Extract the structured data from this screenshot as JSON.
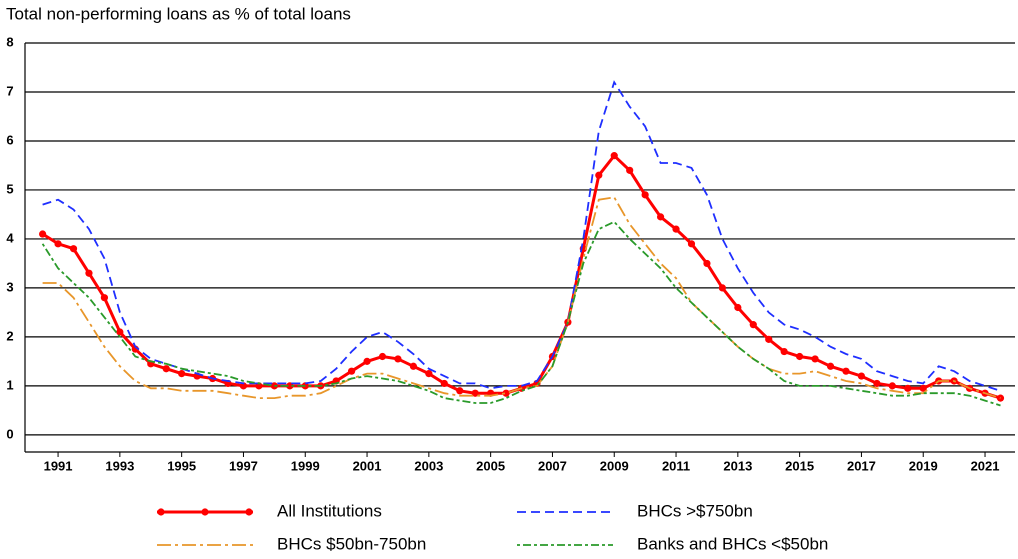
{
  "chart_data": {
    "type": "line",
    "title": "Total non-performing loans as % of total loans",
    "x": [
      1991,
      1991.5,
      1992,
      1992.5,
      1993,
      1993.5,
      1994,
      1994.5,
      1995,
      1995.5,
      1996,
      1996.5,
      1997,
      1997.5,
      1998,
      1998.5,
      1999,
      1999.5,
      2000,
      2000.5,
      2001,
      2001.5,
      2002,
      2002.5,
      2003,
      2003.5,
      2004,
      2004.5,
      2005,
      2005.5,
      2006,
      2006.5,
      2007,
      2007.5,
      2008,
      2008.5,
      2009,
      2009.5,
      2010,
      2010.5,
      2011,
      2011.5,
      2012,
      2012.5,
      2013,
      2013.5,
      2014,
      2014.5,
      2015,
      2015.5,
      2016,
      2016.5,
      2017,
      2017.5,
      2018,
      2018.5,
      2019,
      2019.5,
      2020,
      2020.5,
      2021,
      2021.5,
      2022
    ],
    "series": [
      {
        "name": "All Institutions",
        "color": "#ff0000",
        "style": "solid",
        "markers": true,
        "values": [
          4.1,
          3.9,
          3.8,
          3.3,
          2.8,
          2.1,
          1.75,
          1.45,
          1.35,
          1.25,
          1.2,
          1.15,
          1.05,
          1.0,
          1.0,
          1.0,
          1.0,
          1.0,
          1.0,
          1.1,
          1.3,
          1.5,
          1.6,
          1.55,
          1.4,
          1.25,
          1.05,
          0.9,
          0.85,
          0.85,
          0.85,
          0.95,
          1.05,
          1.6,
          2.3,
          3.8,
          5.3,
          5.7,
          5.4,
          4.9,
          4.45,
          4.2,
          3.9,
          3.5,
          3.0,
          2.6,
          2.25,
          1.95,
          1.7,
          1.6,
          1.55,
          1.4,
          1.3,
          1.2,
          1.05,
          1.0,
          0.95,
          0.95,
          1.1,
          1.1,
          0.95,
          0.85,
          0.75
        ]
      },
      {
        "name": "BHCs >$750bn",
        "color": "#1f2fff",
        "style": "dashed",
        "markers": false,
        "values": [
          4.7,
          4.8,
          4.6,
          4.2,
          3.6,
          2.5,
          1.8,
          1.55,
          1.45,
          1.35,
          1.25,
          1.15,
          1.1,
          1.05,
          1.05,
          1.05,
          1.05,
          1.05,
          1.1,
          1.35,
          1.7,
          2.0,
          2.1,
          1.9,
          1.65,
          1.35,
          1.2,
          1.05,
          1.05,
          0.95,
          1.0,
          1.0,
          1.1,
          1.6,
          2.3,
          4.0,
          6.2,
          7.2,
          6.7,
          6.3,
          5.55,
          5.55,
          5.45,
          4.9,
          4.0,
          3.4,
          2.9,
          2.5,
          2.25,
          2.15,
          2.0,
          1.8,
          1.65,
          1.55,
          1.3,
          1.2,
          1.1,
          1.05,
          1.4,
          1.3,
          1.1,
          1.0,
          0.9
        ]
      },
      {
        "name": "BHCs $50bn-750bn",
        "color": "#e8962a",
        "style": "dash-dot",
        "markers": false,
        "values": [
          3.1,
          3.1,
          2.8,
          2.3,
          1.8,
          1.4,
          1.1,
          0.95,
          0.95,
          0.9,
          0.9,
          0.9,
          0.85,
          0.8,
          0.75,
          0.75,
          0.8,
          0.8,
          0.85,
          1.0,
          1.15,
          1.25,
          1.25,
          1.15,
          1.05,
          0.95,
          0.85,
          0.8,
          0.8,
          0.8,
          0.85,
          0.95,
          1.0,
          1.4,
          2.3,
          3.6,
          4.8,
          4.85,
          4.3,
          3.9,
          3.5,
          3.2,
          2.7,
          2.4,
          2.1,
          1.8,
          1.55,
          1.35,
          1.25,
          1.25,
          1.3,
          1.2,
          1.1,
          1.05,
          0.95,
          0.9,
          0.85,
          0.85,
          1.1,
          1.1,
          0.95,
          0.85,
          0.75
        ]
      },
      {
        "name": "Banks and BHCs <$50bn",
        "color": "#2a9a2a",
        "style": "dot-dash",
        "markers": false,
        "values": [
          3.9,
          3.4,
          3.1,
          2.8,
          2.4,
          2.0,
          1.6,
          1.5,
          1.45,
          1.35,
          1.3,
          1.25,
          1.2,
          1.1,
          1.05,
          1.0,
          1.0,
          1.0,
          1.0,
          1.05,
          1.15,
          1.2,
          1.15,
          1.1,
          1.0,
          0.9,
          0.75,
          0.7,
          0.65,
          0.65,
          0.75,
          0.9,
          1.0,
          1.4,
          2.3,
          3.5,
          4.2,
          4.35,
          4.0,
          3.7,
          3.4,
          3.0,
          2.7,
          2.4,
          2.1,
          1.8,
          1.55,
          1.35,
          1.1,
          1.0,
          1.0,
          1.0,
          0.95,
          0.9,
          0.85,
          0.8,
          0.8,
          0.85,
          0.85,
          0.85,
          0.8,
          0.7,
          0.6
        ]
      }
    ],
    "xlim": [
      1990.43,
      2022.47
    ],
    "xticks": [
      {
        "value": 1991.5,
        "label": "1991"
      },
      {
        "value": 1993.5,
        "label": "1993"
      },
      {
        "value": 1995.5,
        "label": "1995"
      },
      {
        "value": 1997.5,
        "label": "1997"
      },
      {
        "value": 1999.5,
        "label": "1999"
      },
      {
        "value": 2001.5,
        "label": "2001"
      },
      {
        "value": 2003.5,
        "label": "2003"
      },
      {
        "value": 2005.5,
        "label": "2005"
      },
      {
        "value": 2007.5,
        "label": "2007"
      },
      {
        "value": 2009.5,
        "label": "2009"
      },
      {
        "value": 2011.5,
        "label": "2011"
      },
      {
        "value": 2013.5,
        "label": "2013"
      },
      {
        "value": 2015.5,
        "label": "2015"
      },
      {
        "value": 2017.5,
        "label": "2017"
      },
      {
        "value": 2019.5,
        "label": "2019"
      },
      {
        "value": 2021.5,
        "label": "2021"
      }
    ],
    "ylim": [
      -0.35,
      8
    ],
    "yticks": [
      0,
      1,
      2,
      3,
      4,
      5,
      6,
      7,
      8
    ],
    "grid": true,
    "legend": "bottom"
  }
}
